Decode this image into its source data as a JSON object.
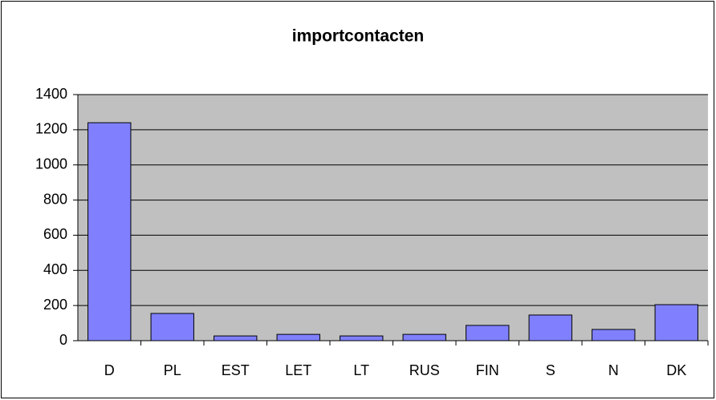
{
  "chart_data": {
    "type": "bar",
    "title": "importcontacten",
    "categories": [
      "D",
      "PL",
      "EST",
      "LET",
      "LT",
      "RUS",
      "FIN",
      "S",
      "N",
      "DK"
    ],
    "values": [
      1240,
      155,
      27,
      36,
      27,
      36,
      87,
      146,
      64,
      205
    ],
    "color": "#8080ff",
    "ylim": [
      0,
      1400
    ],
    "yticks": [
      0,
      200,
      400,
      600,
      800,
      1000,
      1200,
      1400
    ],
    "grid": true
  }
}
